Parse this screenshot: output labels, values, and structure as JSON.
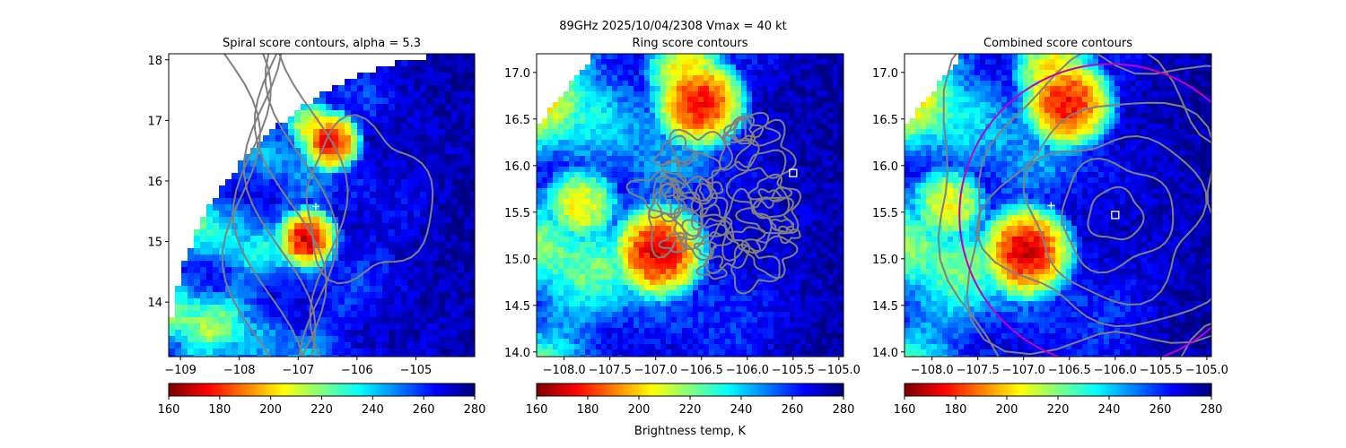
{
  "figure": {
    "suptitle": "89GHz  2025/10/04/2308    Vmax = 40 kt",
    "colorbar_label": "Brightness temp, K",
    "colormap": "jet_r",
    "contour_color": "#808080",
    "ring_color": "#c000c0"
  },
  "chart_data": [
    {
      "type": "heatmap",
      "title": "Spiral score contours, alpha =  5.3",
      "xlim": [
        -109.2,
        -104.0
      ],
      "ylim": [
        13.1,
        18.1
      ],
      "x_ticks": [
        -109,
        -108,
        -107,
        -106,
        -105
      ],
      "y_ticks": [
        14,
        15,
        16,
        17,
        18
      ],
      "x_tick_labels": [
        "−109",
        "−108",
        "−107",
        "−106",
        "−105"
      ],
      "y_tick_labels": [
        "14",
        "15",
        "16",
        "17",
        "18"
      ],
      "swath_edge": true,
      "center_marker": {
        "symbol": "+",
        "x": -106.7,
        "y": 15.58
      },
      "bright_cores": [
        {
          "x": -106.9,
          "y": 15.1,
          "value": 165
        },
        {
          "x": -106.5,
          "y": 16.7,
          "value": 168
        },
        {
          "x": -106.8,
          "y": 16.95,
          "value": 195
        }
      ],
      "colorbar": {
        "min": 160,
        "max": 280,
        "ticks": [
          160,
          180,
          200,
          220,
          240,
          260,
          280
        ]
      }
    },
    {
      "type": "heatmap",
      "title": "Ring score contours",
      "xlim": [
        -108.3,
        -104.95
      ],
      "ylim": [
        13.95,
        17.2
      ],
      "x_ticks": [
        -108.0,
        -107.5,
        -107.0,
        -106.5,
        -106.0,
        -105.5,
        -105.0
      ],
      "y_ticks": [
        14.0,
        14.5,
        15.0,
        15.5,
        16.0,
        16.5,
        17.0
      ],
      "x_tick_labels": [
        "−108.0",
        "−107.5",
        "−107.0",
        "−106.5",
        "−106.0",
        "−105.5",
        "−105.0"
      ],
      "y_tick_labels": [
        "14.0",
        "14.5",
        "15.0",
        "15.5",
        "16.0",
        "16.5",
        "17.0"
      ],
      "center_marker": {
        "symbol": "square",
        "x": -105.5,
        "y": 15.92
      },
      "contour_disc": {
        "x": -106.2,
        "y": 15.6,
        "r": 0.95
      },
      "bright_cores": [
        {
          "x": -107.0,
          "y": 15.1,
          "value": 165
        },
        {
          "x": -106.55,
          "y": 16.7,
          "value": 170
        },
        {
          "x": -106.7,
          "y": 17.05,
          "value": 195
        },
        {
          "x": -107.85,
          "y": 15.6,
          "value": 200
        }
      ],
      "colorbar": {
        "min": 160,
        "max": 280,
        "ticks": [
          160,
          180,
          200,
          220,
          240,
          260,
          280
        ]
      }
    },
    {
      "type": "heatmap",
      "title": "Combined score contours",
      "xlim": [
        -108.3,
        -104.95
      ],
      "ylim": [
        13.95,
        17.2
      ],
      "x_ticks": [
        -108.0,
        -107.5,
        -107.0,
        -106.5,
        -106.0,
        -105.5,
        -105.0
      ],
      "y_ticks": [
        14.0,
        14.5,
        15.0,
        15.5,
        16.0,
        16.5,
        17.0
      ],
      "x_tick_labels": [
        "−108.0",
        "−107.5",
        "−107.0",
        "−106.5",
        "−106.0",
        "−105.5",
        "−105.0"
      ],
      "y_tick_labels": [
        "14.0",
        "14.5",
        "15.0",
        "15.5",
        "16.0",
        "16.5",
        "17.0"
      ],
      "center_marker": {
        "symbol": "square",
        "x": -106.0,
        "y": 15.47
      },
      "cross_marker": {
        "symbol": "+",
        "x": -106.7,
        "y": 15.57
      },
      "ring": {
        "x": -106.05,
        "y": 15.47,
        "r": 1.65
      },
      "bright_cores": [
        {
          "x": -107.0,
          "y": 15.1,
          "value": 165
        },
        {
          "x": -106.55,
          "y": 16.7,
          "value": 170
        },
        {
          "x": -106.7,
          "y": 17.05,
          "value": 195
        },
        {
          "x": -107.85,
          "y": 15.6,
          "value": 200
        }
      ],
      "colorbar": {
        "min": 160,
        "max": 280,
        "ticks": [
          160,
          180,
          200,
          220,
          240,
          260,
          280
        ]
      }
    }
  ]
}
